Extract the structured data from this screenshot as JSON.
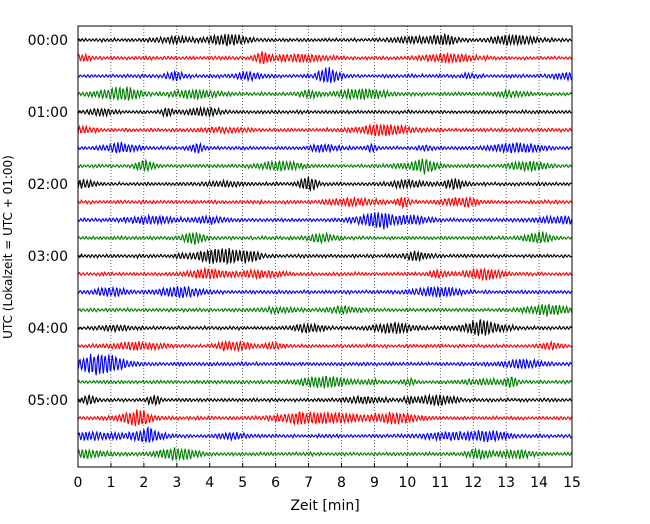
{
  "chart_data": {
    "type": "line",
    "xlabel": "Zeit  [min]",
    "ylabel": "UTC (Lokalzeit = UTC + 01:00)",
    "xlim": [
      0,
      15
    ],
    "x_ticks": [
      "0",
      "1",
      "2",
      "3",
      "4",
      "5",
      "6",
      "7",
      "8",
      "9",
      "10",
      "11",
      "12",
      "13",
      "14",
      "15"
    ],
    "y_tick_labels": [
      "00:00",
      "01:00",
      "02:00",
      "03:00",
      "04:00",
      "05:00"
    ],
    "trace_count": 24,
    "minutes_per_trace": 15,
    "grid": "vertical dotted at each minute",
    "trace_colors": [
      "#000000",
      "#ff0000",
      "#0000ff",
      "#008000"
    ]
  }
}
